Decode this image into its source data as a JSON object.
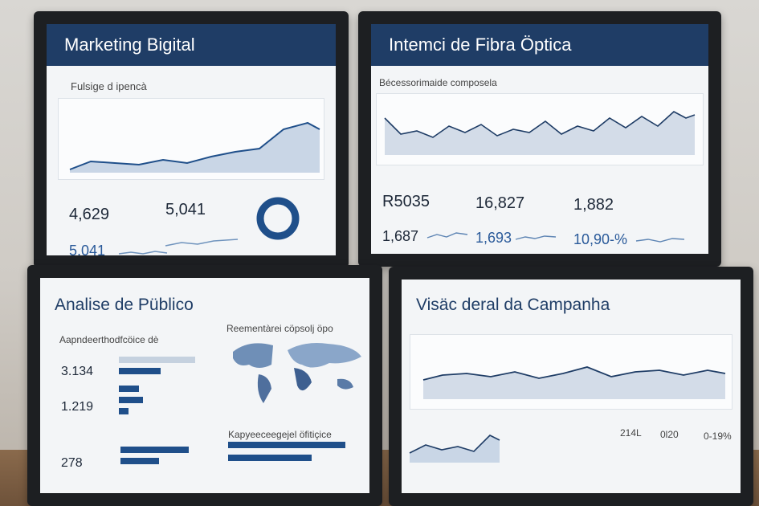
{
  "monitors": {
    "tl": {
      "title": "Marketing Bigital",
      "subtitle": "Fulsige d ipencà",
      "kpis": [
        "4,629",
        "5,041"
      ],
      "footer_value": "5,041"
    },
    "tr": {
      "title": "Intemci de Fibra Öptica",
      "subtitle": "Bécessorimaide composela",
      "kpis": [
        "R5035",
        "16,827",
        "1,882"
      ],
      "sub_values": [
        "1,687",
        "1,693",
        "10,90-%"
      ]
    },
    "bl": {
      "title": "Analise de Püblico",
      "panel1_title": "Aapndeerthodfcöice dè",
      "values": [
        "3.134",
        "1.219",
        "278"
      ],
      "map_title": "Reementàrei cöpsolj öpo",
      "bars_title": "Kapyeeceegejel öfitiçice"
    },
    "br": {
      "title": "Visäc deral da Campanha",
      "table_headers": [
        "214L",
        "0l20",
        "0-19%"
      ]
    }
  }
}
